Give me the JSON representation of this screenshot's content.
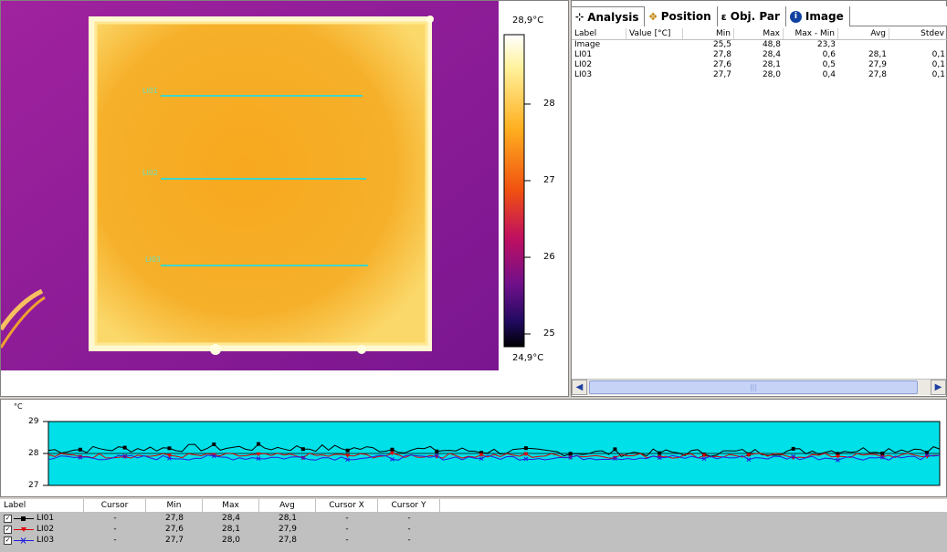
{
  "thermal": {
    "lines": [
      {
        "label": "LI01"
      },
      {
        "label": "LI02"
      },
      {
        "label": "LI03"
      }
    ],
    "scale": {
      "max": "28,9°C",
      "min": "24,9°C",
      "ticks": [
        "28",
        "27",
        "26",
        "25"
      ]
    },
    "colors": {
      "background": "#8a1a9a",
      "plate": "#f5a820",
      "hot": "#fff6c0",
      "line": "#3fd6c8"
    }
  },
  "tabs": [
    {
      "label": "Analysis",
      "icon": "analysis-icon"
    },
    {
      "label": "Position",
      "icon": "position-icon"
    },
    {
      "label": "Obj. Par",
      "icon": "object-parameters-icon"
    },
    {
      "label": "Image",
      "icon": "info-icon"
    }
  ],
  "analysis": {
    "headers": [
      "Label",
      "Value [°C]",
      "Min",
      "Max",
      "Max - Min",
      "Avg",
      "Stdev"
    ],
    "rows": [
      [
        "Image",
        "",
        "25,5",
        "48,8",
        "23,3",
        "",
        ""
      ],
      [
        "LI01",
        "",
        "27,8",
        "28,4",
        "0,6",
        "28,1",
        "0,1"
      ],
      [
        "LI02",
        "",
        "27,6",
        "28,1",
        "0,5",
        "27,9",
        "0,1"
      ],
      [
        "LI03",
        "",
        "27,7",
        "28,0",
        "0,4",
        "27,8",
        "0,1"
      ]
    ]
  },
  "graph": {
    "unit": "°C",
    "ylabels": [
      "29",
      "28",
      "27"
    ],
    "background": "#00e0e8",
    "series": [
      {
        "name": "LI01",
        "color": "#000000",
        "marker": "square"
      },
      {
        "name": "LI02",
        "color": "#e00000",
        "marker": "triangle"
      },
      {
        "name": "LI03",
        "color": "#2020e0",
        "marker": "cross"
      }
    ]
  },
  "legend": {
    "headers": [
      "Label",
      "Cursor",
      "Min",
      "Max",
      "Avg",
      "Cursor X",
      "Cursor Y"
    ],
    "rows": [
      {
        "label": "LI01",
        "cursor": "-",
        "min": "27,8",
        "max": "28,4",
        "avg": "28,1",
        "cx": "-",
        "cy": "-"
      },
      {
        "label": "LI02",
        "cursor": "-",
        "min": "27,6",
        "max": "28,1",
        "avg": "27,9",
        "cx": "-",
        "cy": "-"
      },
      {
        "label": "LI03",
        "cursor": "-",
        "min": "27,7",
        "max": "28,0",
        "avg": "27,8",
        "cx": "-",
        "cy": "-"
      }
    ]
  }
}
